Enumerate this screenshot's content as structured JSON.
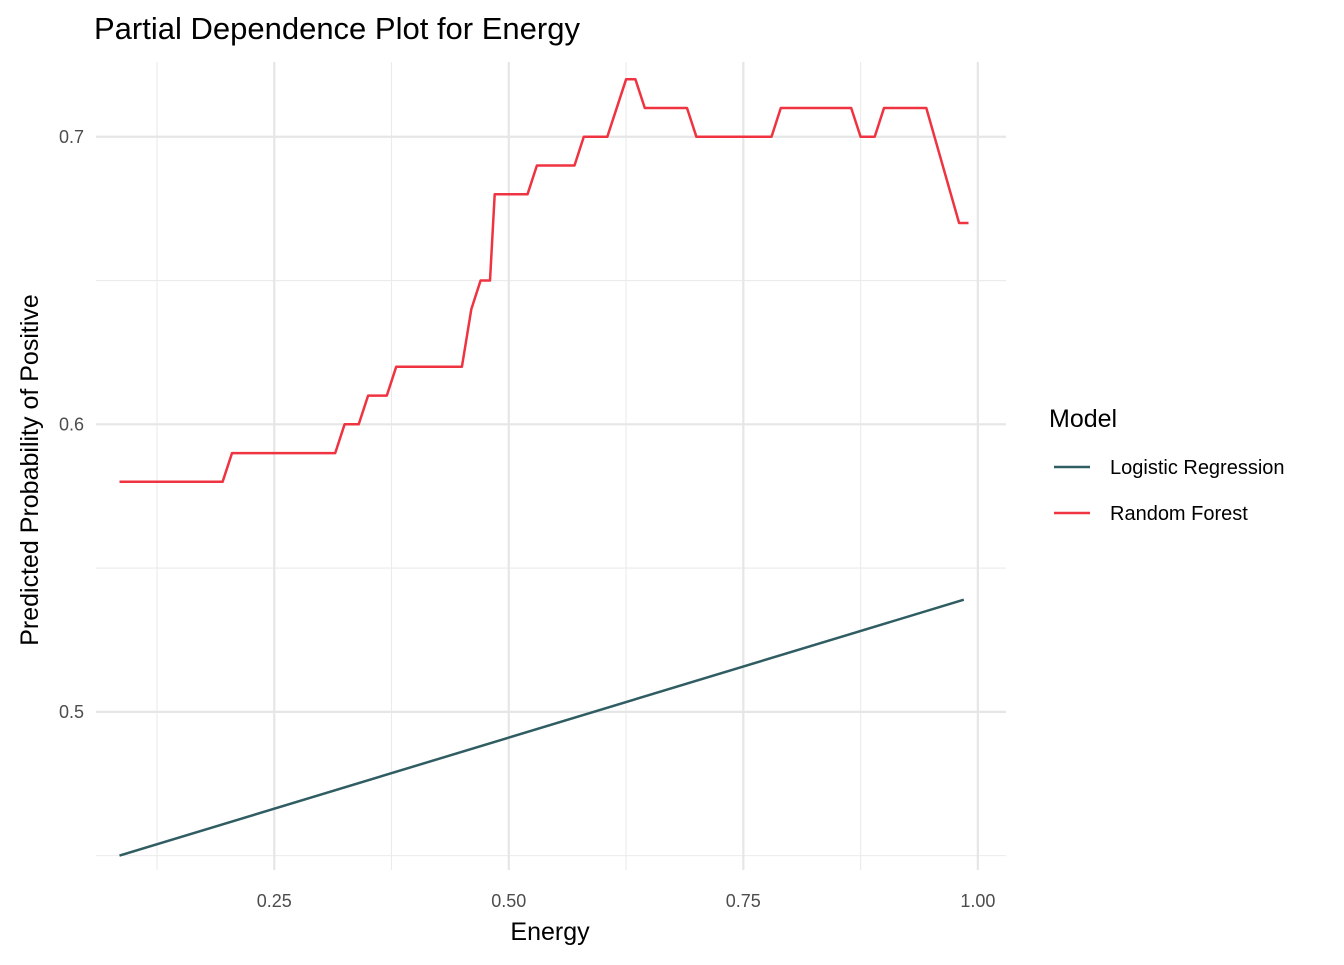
{
  "chart_data": {
    "type": "line",
    "title": "Partial Dependence Plot for Energy",
    "xlabel": "Energy",
    "ylabel": "Predicted Probability of Positive",
    "xlim": [
      0.06,
      1.03
    ],
    "ylim": [
      0.445,
      0.726
    ],
    "x_ticks": [
      0.25,
      0.5,
      0.75,
      1.0
    ],
    "x_tick_labels": [
      "0.25",
      "0.50",
      "0.75",
      "1.00"
    ],
    "x_minor_ticks": [
      0.125,
      0.375,
      0.625,
      0.875
    ],
    "y_ticks": [
      0.5,
      0.6,
      0.7
    ],
    "y_tick_labels": [
      "0.5",
      "0.6",
      "0.7"
    ],
    "y_minor_ticks": [
      0.45,
      0.55,
      0.65
    ],
    "grid": true,
    "legend": {
      "title": "Model",
      "position": "right"
    },
    "series": [
      {
        "name": "Logistic Regression",
        "color": "#2f5d62",
        "x": [
          0.085,
          0.985
        ],
        "y": [
          0.45,
          0.539
        ]
      },
      {
        "name": "Random Forest",
        "color": "#ef3340",
        "x": [
          0.085,
          0.195,
          0.205,
          0.315,
          0.325,
          0.34,
          0.35,
          0.37,
          0.38,
          0.45,
          0.46,
          0.47,
          0.48,
          0.485,
          0.52,
          0.53,
          0.57,
          0.58,
          0.605,
          0.625,
          0.635,
          0.645,
          0.69,
          0.7,
          0.78,
          0.79,
          0.865,
          0.875,
          0.89,
          0.9,
          0.945,
          0.98,
          0.99
        ],
        "y": [
          0.58,
          0.58,
          0.59,
          0.59,
          0.6,
          0.6,
          0.61,
          0.61,
          0.62,
          0.62,
          0.64,
          0.65,
          0.65,
          0.68,
          0.68,
          0.69,
          0.69,
          0.7,
          0.7,
          0.72,
          0.72,
          0.71,
          0.71,
          0.7,
          0.7,
          0.71,
          0.71,
          0.7,
          0.7,
          0.71,
          0.71,
          0.67,
          0.67
        ]
      }
    ]
  }
}
